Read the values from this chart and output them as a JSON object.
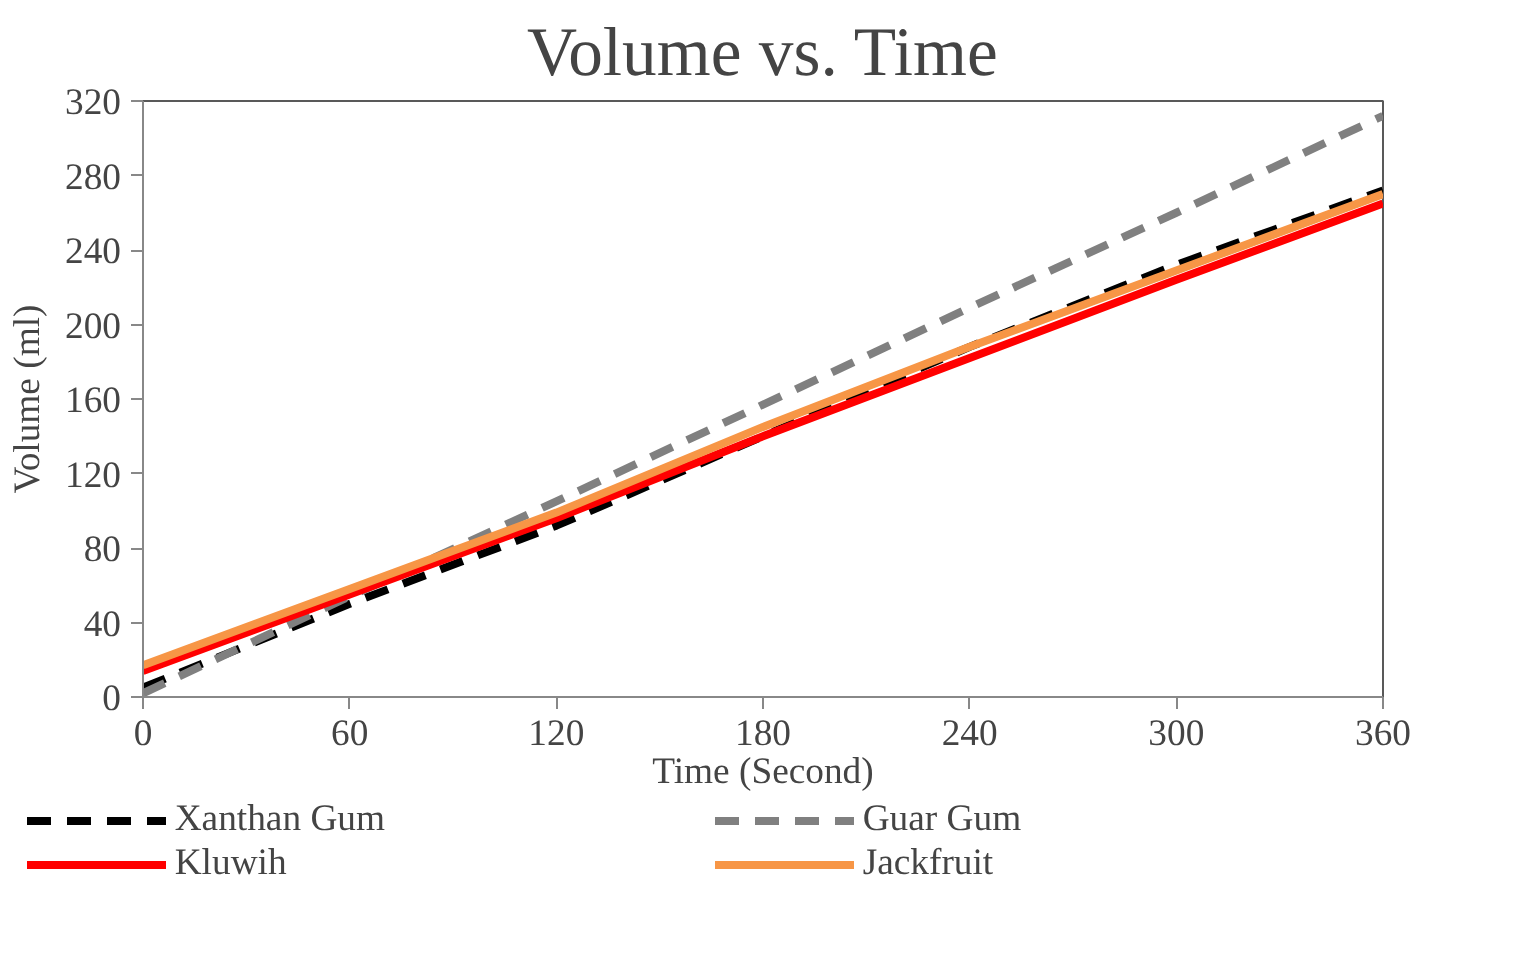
{
  "chart_data": {
    "type": "line",
    "title": "Volume vs. Time",
    "xlabel": "Time (Second)",
    "ylabel": "Volume (ml)",
    "x": [
      0,
      60,
      120,
      180,
      240,
      300,
      360
    ],
    "xlim": [
      0,
      360
    ],
    "xticks": [
      0,
      60,
      120,
      180,
      240,
      300,
      360
    ],
    "ylim": [
      0,
      320
    ],
    "yticks": [
      0,
      40,
      80,
      120,
      160,
      200,
      240,
      280,
      320
    ],
    "grid": false,
    "legend": "bottom",
    "marker": "none",
    "series": [
      {
        "name": "Xanthan Gum",
        "color": "#000000",
        "line_style": "dashed",
        "values": [
          5,
          50,
          92,
          140,
          188,
          232,
          272
        ]
      },
      {
        "name": "Guar Gum",
        "color": "#808080",
        "line_style": "dashed",
        "values": [
          2,
          54,
          105,
          157,
          209,
          260,
          312
        ]
      },
      {
        "name": "Kluwih",
        "color": "#ff0000",
        "line_style": "solid",
        "values": [
          14,
          55,
          96,
          140,
          182,
          224,
          265
        ]
      },
      {
        "name": "Jackfruit",
        "color": "#f79646",
        "line_style": "solid",
        "values": [
          17,
          58,
          99,
          145,
          188,
          229,
          270
        ]
      }
    ]
  }
}
